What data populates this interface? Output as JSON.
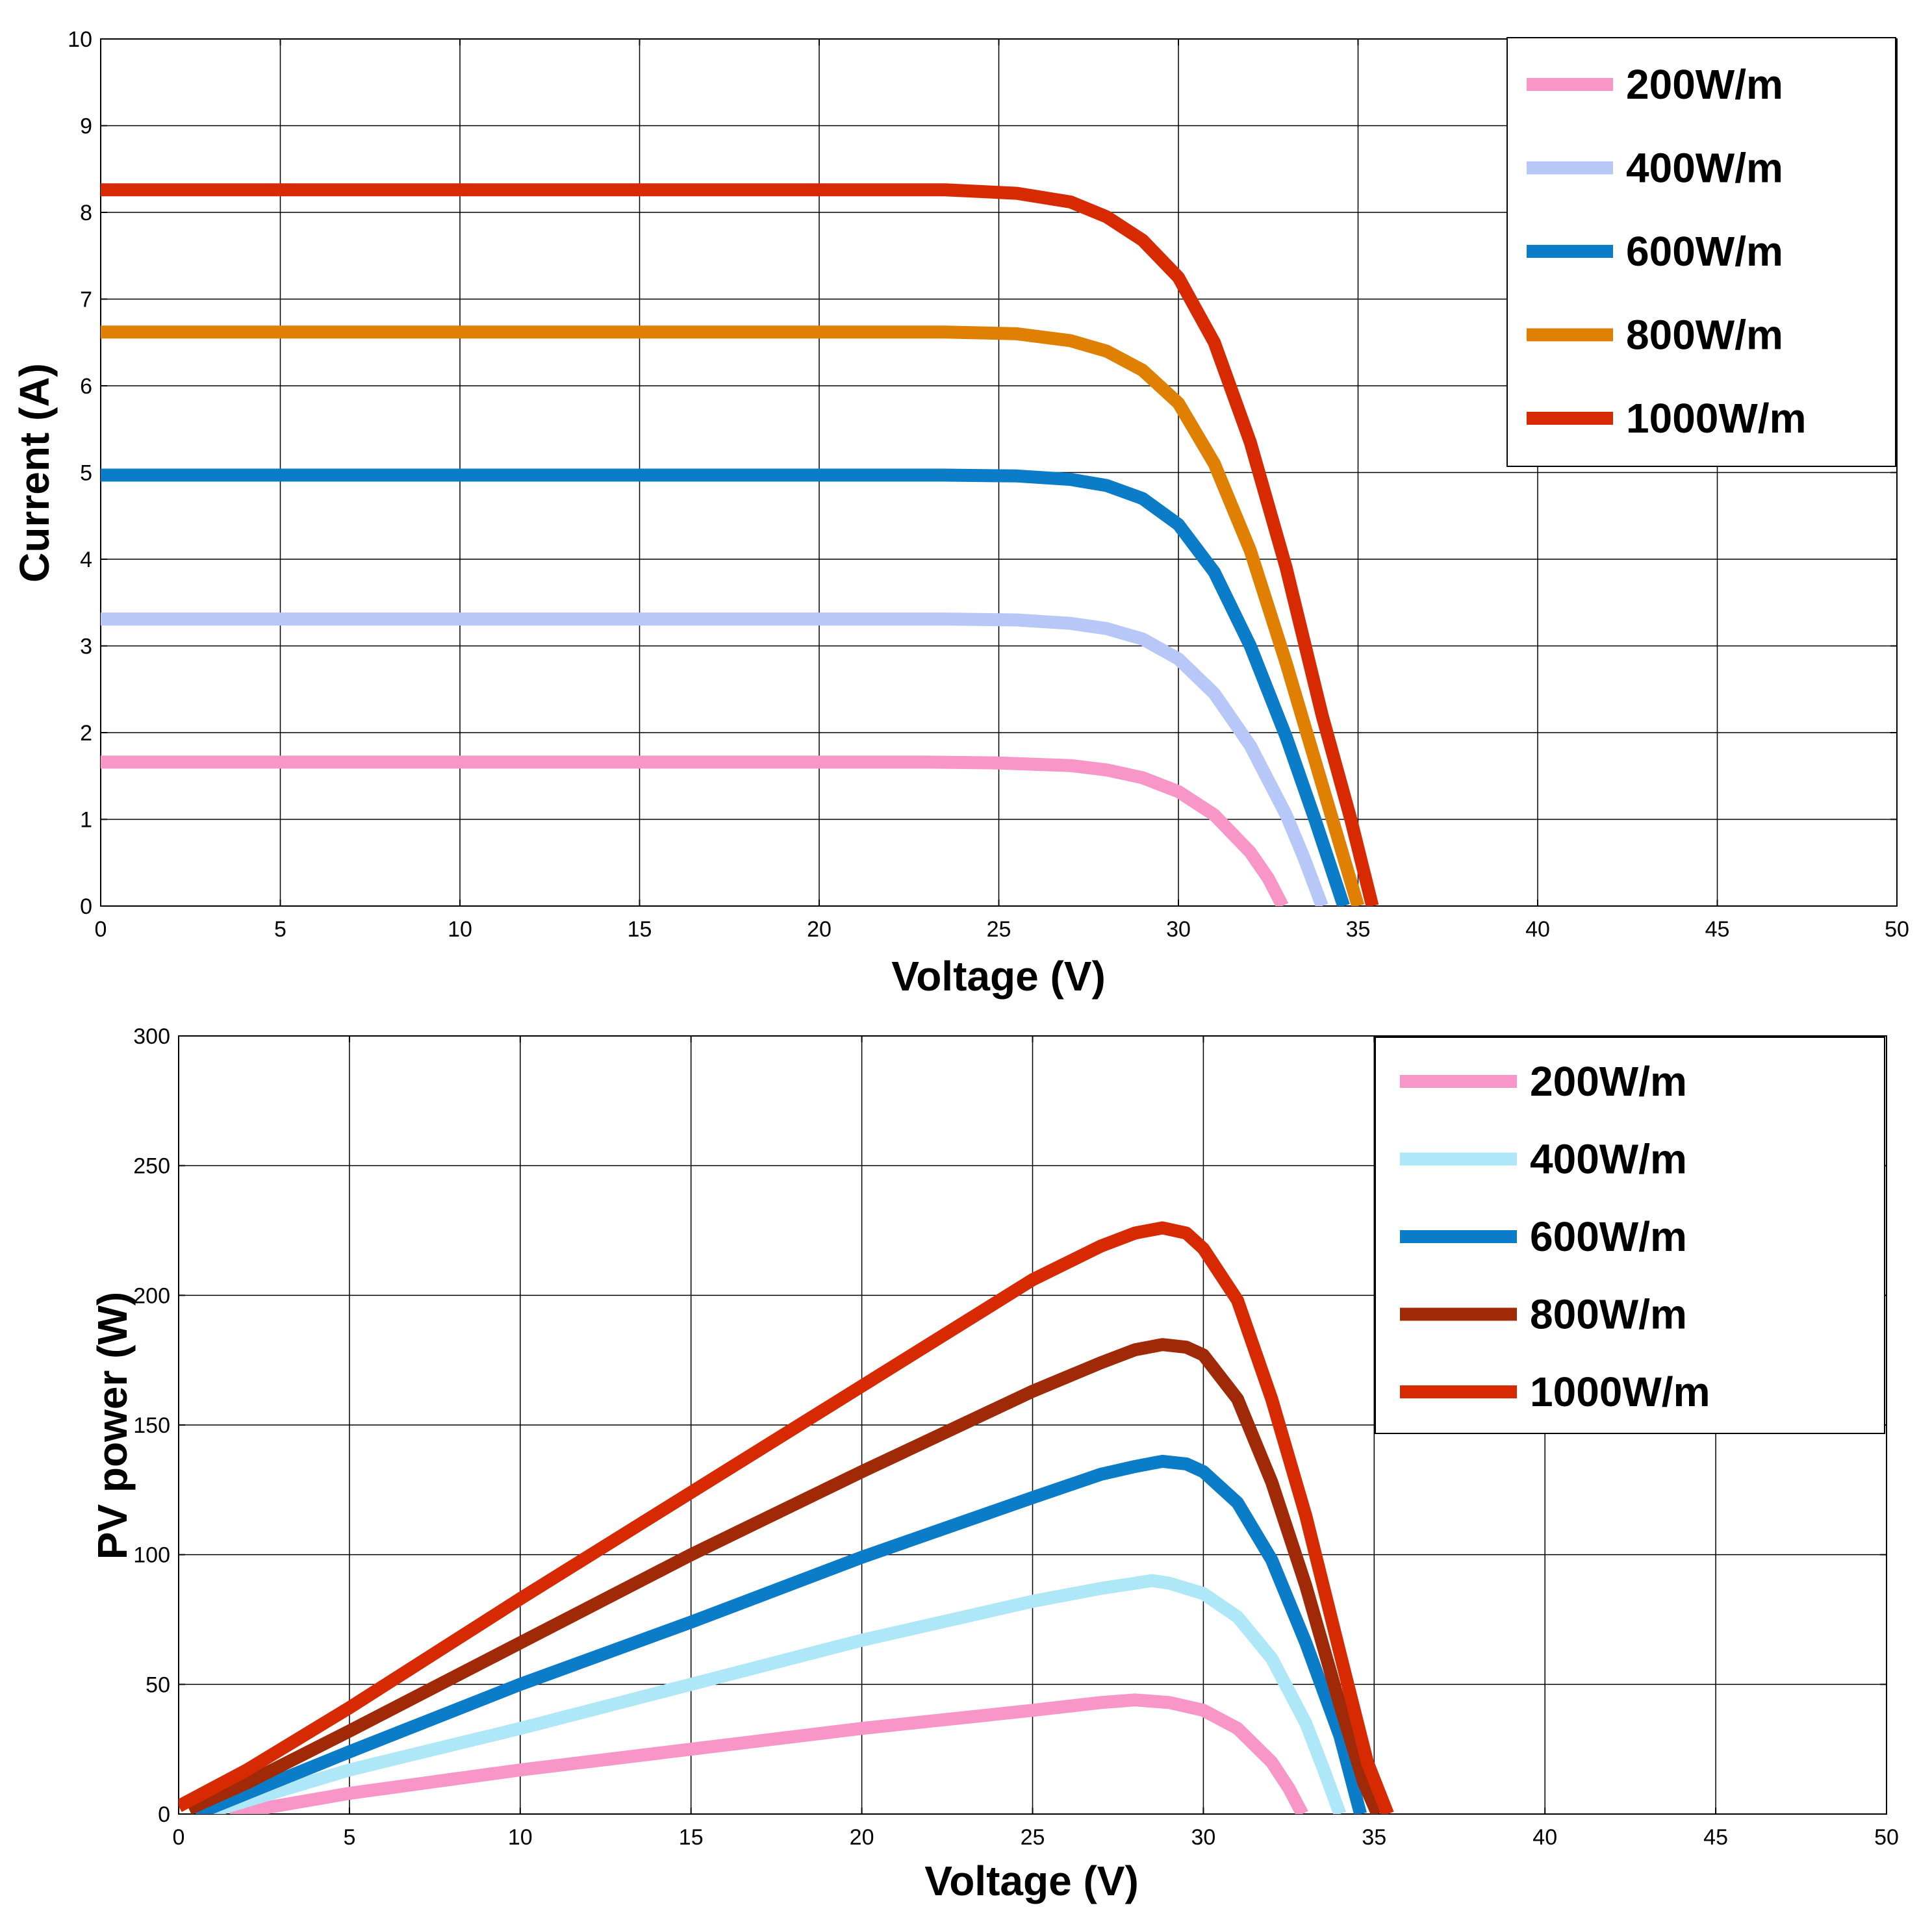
{
  "chart_data": [
    {
      "type": "line",
      "title": "",
      "xlabel": "Voltage (V)",
      "ylabel": "Current (A)",
      "xlim": [
        0,
        50
      ],
      "ylim": [
        0,
        10
      ],
      "xticks": [
        0,
        5,
        10,
        15,
        20,
        25,
        30,
        35,
        40,
        45,
        50
      ],
      "yticks": [
        0,
        1,
        2,
        3,
        4,
        5,
        6,
        7,
        8,
        9,
        10
      ],
      "grid": true,
      "legend_position": "top-right",
      "series": [
        {
          "name": "200W/m",
          "color": "#f896c8",
          "x": [
            0,
            23,
            25,
            27,
            28,
            29,
            30,
            31,
            32,
            32.5,
            32.9
          ],
          "y": [
            1.66,
            1.66,
            1.65,
            1.62,
            1.57,
            1.48,
            1.32,
            1.05,
            0.62,
            0.32,
            0
          ]
        },
        {
          "name": "400W/m",
          "color": "#b7c8f8",
          "x": [
            0,
            23.5,
            25.5,
            27,
            28,
            29,
            30,
            31,
            32,
            33,
            33.5,
            34
          ],
          "y": [
            3.31,
            3.31,
            3.3,
            3.26,
            3.2,
            3.08,
            2.85,
            2.45,
            1.85,
            1.05,
            0.55,
            0
          ]
        },
        {
          "name": "600W/m",
          "color": "#0a7cc8",
          "x": [
            0,
            23.5,
            25.5,
            27,
            28,
            29,
            30,
            31,
            32,
            33,
            33.8,
            34.6
          ],
          "y": [
            4.97,
            4.97,
            4.96,
            4.92,
            4.85,
            4.7,
            4.4,
            3.85,
            3.0,
            1.95,
            1.0,
            0
          ]
        },
        {
          "name": "800W/m",
          "color": "#e08002",
          "x": [
            0,
            23.5,
            25.5,
            27,
            28,
            29,
            30,
            31,
            32,
            33,
            34,
            35
          ],
          "y": [
            6.62,
            6.62,
            6.6,
            6.52,
            6.4,
            6.18,
            5.8,
            5.1,
            4.1,
            2.8,
            1.4,
            0
          ]
        },
        {
          "name": "1000W/m",
          "color": "#d82a02",
          "x": [
            0,
            23.5,
            25.5,
            27,
            28,
            29,
            30,
            31,
            32,
            33,
            34,
            34.8,
            35.4
          ],
          "y": [
            8.26,
            8.26,
            8.22,
            8.12,
            7.95,
            7.68,
            7.25,
            6.5,
            5.35,
            3.9,
            2.2,
            1.0,
            0
          ]
        }
      ],
      "legend": {
        "entries": [
          "200W/m",
          "400W/m",
          "600W/m",
          "800W/m",
          "1000W/m"
        ],
        "colors": [
          "#f896c8",
          "#b7c8f8",
          "#0a7cc8",
          "#e08002",
          "#d82a02"
        ]
      }
    },
    {
      "type": "line",
      "title": "",
      "xlabel": "Voltage (V)",
      "ylabel": "PV power (W)",
      "xlim": [
        0,
        50
      ],
      "ylim": [
        0,
        300
      ],
      "xticks": [
        0,
        5,
        10,
        15,
        20,
        25,
        30,
        35,
        40,
        45,
        50
      ],
      "yticks": [
        0,
        50,
        100,
        150,
        200,
        250,
        300
      ],
      "grid": true,
      "legend_position": "top-right",
      "series": [
        {
          "name": "200W/m",
          "color": "#f896c8",
          "x": [
            1.5,
            5,
            10,
            15,
            20,
            25,
            27,
            28,
            29,
            30,
            31,
            32,
            32.5,
            32.9
          ],
          "y": [
            0,
            8,
            17,
            25,
            33,
            40,
            43,
            44,
            43,
            40,
            33,
            20,
            10,
            0
          ]
        },
        {
          "name": "400W/m",
          "color": "#aee8f8",
          "x": [
            0.7,
            5,
            10,
            15,
            20,
            25,
            27,
            28,
            28.5,
            29,
            30,
            31,
            32,
            33,
            33.5,
            34
          ],
          "y": [
            0,
            17,
            33,
            50,
            67,
            82,
            87,
            89,
            90,
            89,
            85,
            76,
            60,
            35,
            18,
            0
          ]
        },
        {
          "name": "600W/m",
          "color": "#0a7cc8",
          "x": [
            0.5,
            5,
            10,
            15,
            20,
            25,
            27,
            28,
            28.8,
            29.5,
            30,
            31,
            32,
            33,
            34,
            34.6
          ],
          "y": [
            0,
            24,
            50,
            74,
            99,
            122,
            131,
            134,
            136,
            135,
            132,
            120,
            98,
            66,
            30,
            0
          ]
        },
        {
          "name": "800W/m",
          "color": "#a02a08",
          "x": [
            0.3,
            2,
            5,
            10,
            15,
            20,
            25,
            27,
            28,
            28.8,
            29.5,
            30,
            31,
            32,
            33,
            34,
            34.7,
            35.1
          ],
          "y": [
            2,
            12,
            32,
            66,
            100,
            132,
            163,
            174,
            179,
            181,
            180,
            177,
            160,
            128,
            88,
            42,
            12,
            0
          ]
        },
        {
          "name": "1000W/m",
          "color": "#d82a02",
          "x": [
            0,
            2,
            5,
            10,
            15,
            20,
            25,
            27,
            28,
            28.8,
            29.5,
            30,
            31,
            32,
            33,
            34,
            34.8,
            35.4
          ],
          "y": [
            3,
            17,
            41,
            83,
            124,
            165,
            206,
            219,
            224,
            226,
            224,
            218,
            198,
            160,
            115,
            62,
            20,
            0
          ]
        }
      ],
      "legend": {
        "entries": [
          "200W/m",
          "400W/m",
          "600W/m",
          "800W/m",
          "1000W/m"
        ],
        "colors": [
          "#f896c8",
          "#aee8f8",
          "#0a7cc8",
          "#a02a08",
          "#d82a02"
        ]
      }
    }
  ]
}
